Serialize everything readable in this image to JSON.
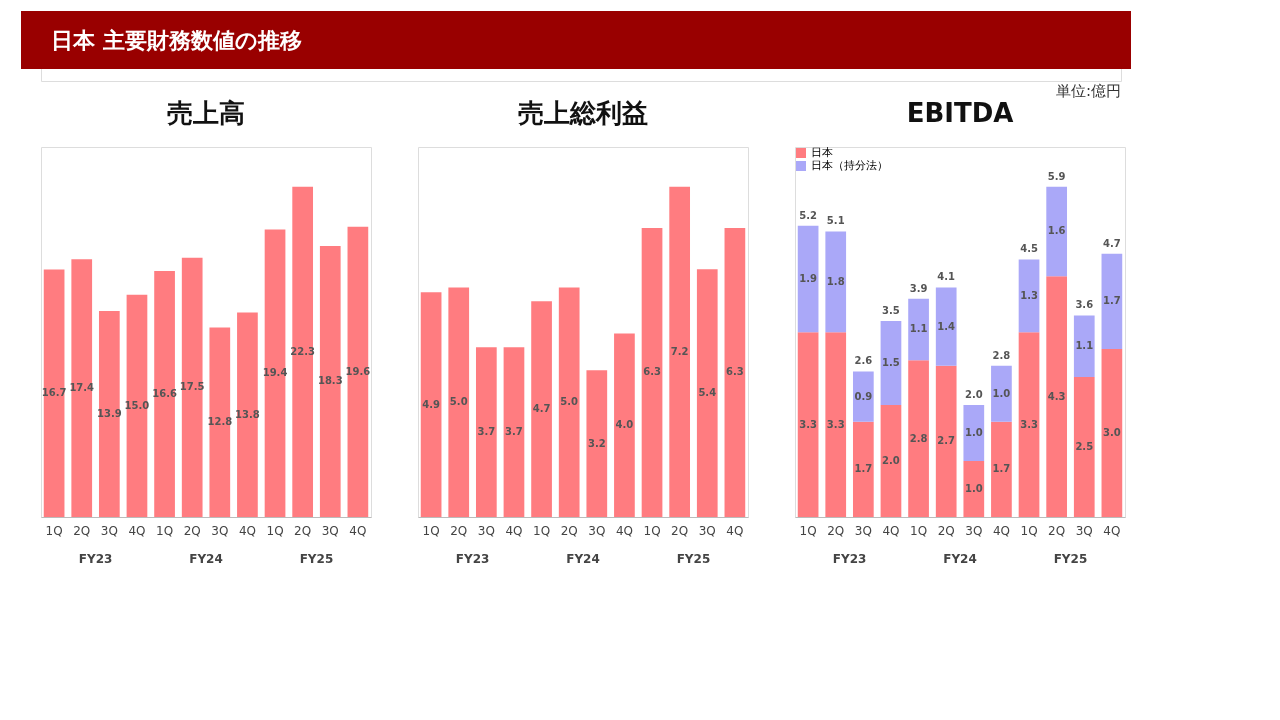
{
  "chart_data": [
    {
      "type": "other",
      "title": "日本 主要財務数値の推移",
      "annotations": [
        "単位:億円"
      ]
    },
    {
      "type": "bar",
      "title": "売上高",
      "categories": [
        "1Q",
        "2Q",
        "3Q",
        "4Q",
        "1Q",
        "2Q",
        "3Q",
        "4Q",
        "1Q",
        "2Q",
        "3Q",
        "4Q"
      ],
      "values": [
        16.7,
        17.4,
        13.9,
        15.0,
        16.6,
        17.5,
        12.8,
        13.8,
        19.4,
        22.3,
        18.3,
        19.6
      ],
      "value_labels": [
        "16.7",
        "17.4",
        "13.9",
        "15.0",
        "16.6",
        "17.5",
        "12.8",
        "13.8",
        "19.4",
        "22.3",
        "18.3",
        "19.6"
      ],
      "color": "#ff7c80",
      "grid": false,
      "annotations": [
        "FY23",
        "FY24",
        "FY25"
      ]
    },
    {
      "type": "bar",
      "title": "売上総利益",
      "categories": [
        "1Q",
        "2Q",
        "3Q",
        "4Q",
        "1Q",
        "2Q",
        "3Q",
        "4Q",
        "1Q",
        "2Q",
        "3Q",
        "4Q"
      ],
      "values": [
        4.9,
        5.0,
        3.7,
        3.7,
        4.7,
        5.0,
        3.2,
        4.0,
        6.3,
        7.2,
        5.4,
        6.3
      ],
      "value_labels": [
        "4.9",
        "5.0",
        "3.7",
        "3.7",
        "4.7",
        "5.0",
        "3.2",
        "4.0",
        "6.3",
        "7.2",
        "5.4",
        "6.3"
      ],
      "color": "#ff7c80",
      "grid": false,
      "annotations": [
        "FY23",
        "FY24",
        "FY25"
      ]
    },
    {
      "type": "bar",
      "title": "EBITDA",
      "stacked": true,
      "categories": [
        "1Q",
        "2Q",
        "3Q",
        "4Q",
        "1Q",
        "2Q",
        "3Q",
        "4Q",
        "1Q",
        "2Q",
        "3Q",
        "4Q"
      ],
      "series": [
        {
          "name": "日本",
          "color": "#ff7c80",
          "values": [
            3.3,
            3.3,
            1.7,
            2.0,
            2.8,
            2.7,
            1.0,
            1.7,
            3.3,
            4.3,
            2.5,
            3.0
          ],
          "value_labels": [
            "3.3",
            "3.3",
            "1.7",
            "2.0",
            "2.8",
            "2.7",
            "1.0",
            "1.7",
            "3.3",
            "4.3",
            "2.5",
            "3.0"
          ]
        },
        {
          "name": "日本（持分法）",
          "color": "#aaa8f8",
          "values": [
            1.9,
            1.8,
            0.9,
            1.5,
            1.1,
            1.4,
            1.0,
            1.0,
            1.3,
            1.6,
            1.1,
            1.7
          ],
          "value_labels": [
            "1.9",
            "1.8",
            "0.9",
            "1.5",
            "1.1",
            "1.4",
            "1.0",
            "1.0",
            "1.3",
            "1.6",
            "1.1",
            "1.7"
          ]
        }
      ],
      "totals": [
        "5.2",
        "5.1",
        "2.6",
        "3.5",
        "3.9",
        "4.1",
        "2.0",
        "2.8",
        "4.5",
        "5.9",
        "3.6",
        "4.7"
      ],
      "grid": false,
      "legend": "top left",
      "annotations": [
        "FY23",
        "FY24",
        "FY25"
      ]
    }
  ]
}
